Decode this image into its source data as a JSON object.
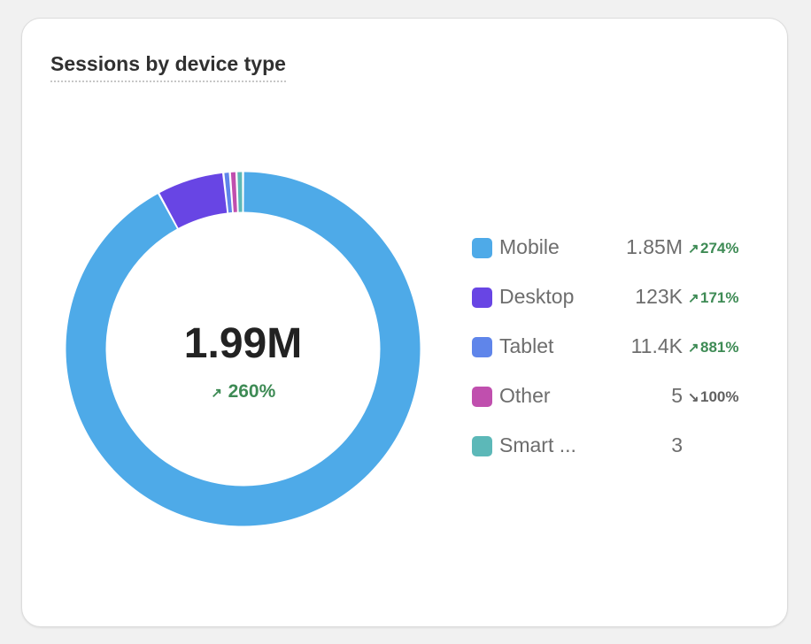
{
  "card": {
    "title": "Sessions by device type"
  },
  "center": {
    "total": "1.99M",
    "change_arrow": "↗",
    "change": "260%"
  },
  "legend": [
    {
      "name": "Mobile",
      "value": "1.85M",
      "arrow": "↗",
      "change": "274%",
      "direction": "up",
      "color": "#4eaae8"
    },
    {
      "name": "Desktop",
      "value": "123K",
      "arrow": "↗",
      "change": "171%",
      "direction": "up",
      "color": "#6845e4"
    },
    {
      "name": "Tablet",
      "value": "11.4K",
      "arrow": "↗",
      "change": "881%",
      "direction": "up",
      "color": "#5f85ea"
    },
    {
      "name": "Other",
      "value": "5",
      "arrow": "↘",
      "change": "100%",
      "direction": "down",
      "color": "#c04fae"
    },
    {
      "name": "Smart ...",
      "value": "3",
      "arrow": "",
      "change": "",
      "direction": "none",
      "color": "#5cb8b8"
    }
  ],
  "chart_data": {
    "type": "pie",
    "style": "donut",
    "categories": [
      "Mobile",
      "Desktop",
      "Tablet",
      "Other",
      "Smart ..."
    ],
    "values": [
      1850000,
      123000,
      11400,
      5,
      3
    ],
    "colors": [
      "#4eaae8",
      "#6845e4",
      "#5f85ea",
      "#c04fae",
      "#5cb8b8"
    ],
    "title": "Sessions by device type",
    "center_label": "1.99M",
    "legend_position": "right"
  }
}
